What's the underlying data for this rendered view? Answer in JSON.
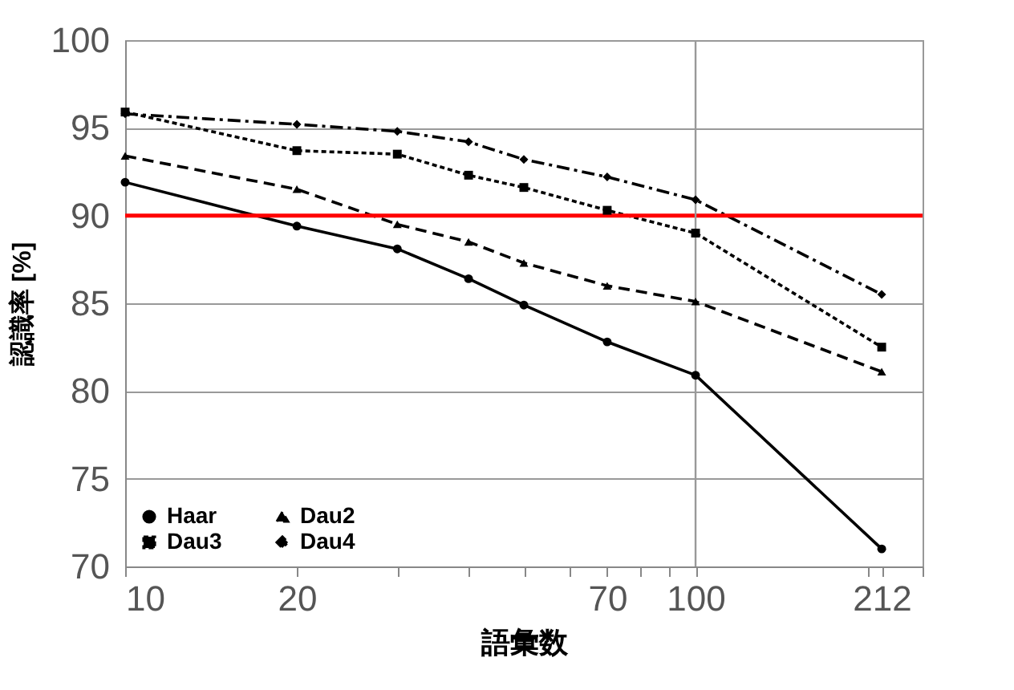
{
  "chart_data": {
    "type": "line",
    "xlabel": "語彙数",
    "ylabel": "認識率 [%]",
    "log": "x",
    "xlim": [
      10,
      250
    ],
    "xticks": [
      10,
      20,
      {
        "value": 30,
        "label": null
      },
      {
        "value": 40,
        "label": null
      },
      {
        "value": 50,
        "label": null
      },
      {
        "value": 60,
        "label": null
      },
      70,
      {
        "value": 80,
        "label": null
      },
      {
        "value": 90,
        "label": null
      },
      100,
      {
        "value": 200,
        "label": null
      },
      212,
      {
        "value": 250,
        "label": null
      }
    ],
    "ylim": [
      70,
      100
    ],
    "yticks": [
      70,
      75,
      80,
      85,
      90,
      95,
      100
    ],
    "grid": "y",
    "legend": "bottom left",
    "x": [
      10,
      20,
      30,
      40,
      50,
      70,
      100,
      212
    ],
    "series": [
      {
        "name": "Haar",
        "color": "#000000",
        "marker": "circle",
        "line_style": "solid",
        "values": [
          91.9,
          89.4,
          88.1,
          86.4,
          84.9,
          82.8,
          80.9,
          71.0
        ]
      },
      {
        "name": "Dau2",
        "color": "#000000",
        "marker": "triangle",
        "line_style": "dashed",
        "values": [
          93.4,
          91.5,
          89.5,
          88.5,
          87.3,
          86.0,
          85.1,
          81.1
        ]
      },
      {
        "name": "Dau3",
        "color": "#000000",
        "marker": "square",
        "line_style": "dotted",
        "values": [
          95.9,
          93.7,
          93.5,
          92.3,
          91.6,
          90.3,
          89.0,
          82.5
        ]
      },
      {
        "name": "Dau4",
        "color": "#000000",
        "marker": "diamond",
        "line_style": "dashdot",
        "values": [
          95.8,
          95.2,
          94.8,
          94.2,
          93.2,
          92.2,
          90.9,
          85.5
        ]
      }
    ],
    "ref_lines": [
      {
        "axis": "y",
        "value": 90,
        "label": null,
        "color": "#ff0000"
      },
      {
        "axis": "x",
        "value": 100,
        "label": null,
        "color": "#999999"
      }
    ]
  }
}
